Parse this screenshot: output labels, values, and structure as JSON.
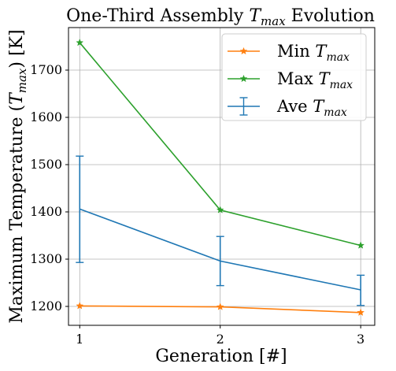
{
  "chart_data": {
    "type": "line",
    "title_prefix": "One-Third Assembly ",
    "title_math": "T",
    "title_math_sub": "max",
    "title_suffix": " Evolution",
    "xlabel": "Generation [#]",
    "ylabel_prefix": "Maximum Temperature (",
    "ylabel_math": "T",
    "ylabel_math_sub": "max",
    "ylabel_suffix": ") [K]",
    "x": [
      1,
      2,
      3
    ],
    "x_ticks": [
      "1",
      "2",
      "3"
    ],
    "y_ticks": [
      "1200",
      "1300",
      "1400",
      "1500",
      "1600",
      "1700"
    ],
    "xlim": [
      0.92,
      3.1
    ],
    "ylim": [
      1160,
      1790
    ],
    "grid": true,
    "legend_position": "top-right",
    "series": [
      {
        "name_prefix": "Min ",
        "name_math": "T",
        "name_math_sub": "max",
        "color": "#ff7f0e",
        "marker": "star",
        "values": [
          1201,
          1199,
          1187
        ]
      },
      {
        "name_prefix": "Max ",
        "name_math": "T",
        "name_math_sub": "max",
        "color": "#2ca02c",
        "marker": "star",
        "values": [
          1758,
          1404,
          1329
        ]
      },
      {
        "name_prefix": "Ave ",
        "name_math": "T",
        "name_math_sub": "max",
        "color": "#1f77b4",
        "marker": "errorbar",
        "values": [
          1406,
          1296,
          1235
        ],
        "error_low": [
          1293,
          1244,
          1202
        ],
        "error_high": [
          1518,
          1348,
          1266
        ]
      }
    ]
  }
}
